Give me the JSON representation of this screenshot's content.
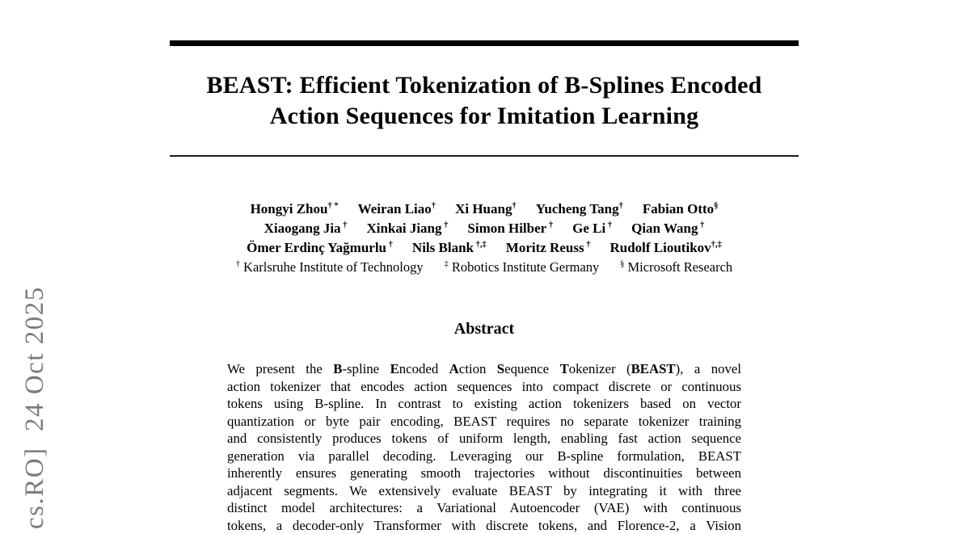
{
  "arxiv_stamp": {
    "text": "cs.RO]  24 Oct 2025",
    "color": "#7c7c7c"
  },
  "title": {
    "line1": "BEAST: Efficient Tokenization of B-Splines Encoded",
    "line2": "Action Sequences for Imitation Learning"
  },
  "authors": {
    "lines": [
      [
        {
          "name": "Hongyi Zhou",
          "sup": "† *"
        },
        {
          "name": "Weiran Liao",
          "sup": "†"
        },
        {
          "name": "Xi Huang",
          "sup": "†"
        },
        {
          "name": "Yucheng Tang",
          "sup": "†"
        },
        {
          "name": "Fabian Otto",
          "sup": "§"
        }
      ],
      [
        {
          "name": "Xiaogang Jia",
          "sup": " †"
        },
        {
          "name": "Xinkai Jiang",
          "sup": " †"
        },
        {
          "name": "Simon Hilber",
          "sup": " †"
        },
        {
          "name": "Ge Li",
          "sup": " †"
        },
        {
          "name": "Qian Wang",
          "sup": " †"
        }
      ],
      [
        {
          "name": "Ömer Erdinç Yağmurlu",
          "sup": " †"
        },
        {
          "name": "Nils Blank",
          "sup": " †,‡"
        },
        {
          "name": "Moritz Reuss",
          "sup": " †"
        },
        {
          "name": "Rudolf Lioutikov",
          "sup": "†,‡"
        }
      ]
    ]
  },
  "affiliations": [
    {
      "sup": "†",
      "name": "Karlsruhe Institute of Technology"
    },
    {
      "sup": "‡",
      "name": "Robotics Institute Germany"
    },
    {
      "sup": "§",
      "name": "Microsoft Research"
    }
  ],
  "abstract": {
    "heading": "Abstract",
    "lines": [
      [
        {
          "t": "We present the ",
          "b": false
        },
        {
          "t": "B",
          "b": true
        },
        {
          "t": "-spline ",
          "b": false
        },
        {
          "t": "E",
          "b": true
        },
        {
          "t": "ncoded ",
          "b": false
        },
        {
          "t": "A",
          "b": true
        },
        {
          "t": "ction ",
          "b": false
        },
        {
          "t": "S",
          "b": true
        },
        {
          "t": "equence ",
          "b": false
        },
        {
          "t": "T",
          "b": true
        },
        {
          "t": "okenizer (",
          "b": false
        },
        {
          "t": "BEAST",
          "b": true
        },
        {
          "t": "), a novel",
          "b": false
        }
      ],
      [
        {
          "t": "action tokenizer that encodes action sequences into compact discrete or continuous",
          "b": false
        }
      ],
      [
        {
          "t": "tokens using B-spline. In contrast to existing action tokenizers based on vector",
          "b": false
        }
      ],
      [
        {
          "t": "quantization or byte pair encoding, BEAST requires no separate tokenizer training",
          "b": false
        }
      ],
      [
        {
          "t": "and consistently produces tokens of uniform length, enabling fast action sequence",
          "b": false
        }
      ],
      [
        {
          "t": "generation via parallel decoding. Leveraging our B-spline formulation, BEAST",
          "b": false
        }
      ],
      [
        {
          "t": "inherently ensures generating smooth trajectories without discontinuities between",
          "b": false
        }
      ],
      [
        {
          "t": "adjacent segments. We extensively evaluate BEAST by integrating it with three",
          "b": false
        }
      ],
      [
        {
          "t": "distinct model architectures: a Variational Autoencoder (VAE) with continuous",
          "b": false
        }
      ],
      [
        {
          "t": "tokens, a decoder-only Transformer with discrete tokens, and Florence-2, a Vision",
          "b": false
        }
      ]
    ]
  }
}
